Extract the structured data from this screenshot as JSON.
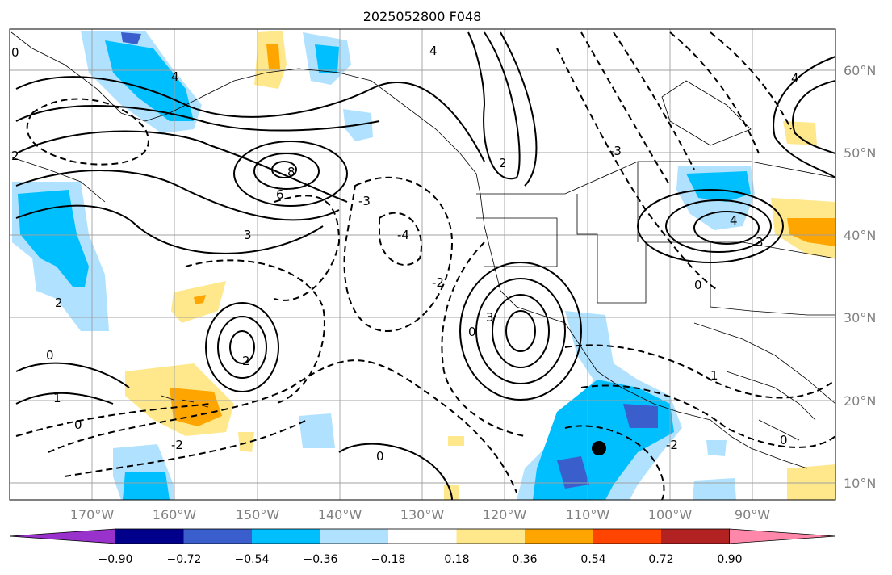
{
  "title": "2025052800 F048",
  "lat_labels": [
    "60°N",
    "50°N",
    "40°N",
    "30°N",
    "20°N",
    "10°N"
  ],
  "lon_labels": [
    "170°W",
    "160°W",
    "150°W",
    "140°W",
    "130°W",
    "120°W",
    "110°W",
    "100°W",
    "90°W"
  ],
  "colorbar": {
    "ticks": [
      "−0.90",
      "−0.72",
      "−0.54",
      "−0.36",
      "−0.18",
      "0.18",
      "0.36",
      "0.54",
      "0.72",
      "0.90"
    ],
    "colors": [
      "#9932cc",
      "#00008b",
      "#3a5fcd",
      "#00bfff",
      "#b0e2ff",
      "#ffffff",
      "#fee88b",
      "#ffa500",
      "#ff4500",
      "#b22222",
      "#ff88aa"
    ]
  },
  "contour_labels": [
    "0",
    "1",
    "2",
    "3",
    "4",
    "6",
    "8",
    "-2",
    "-3",
    "-4"
  ],
  "marker": {
    "lat": 14.2,
    "lon": -108.9
  }
}
